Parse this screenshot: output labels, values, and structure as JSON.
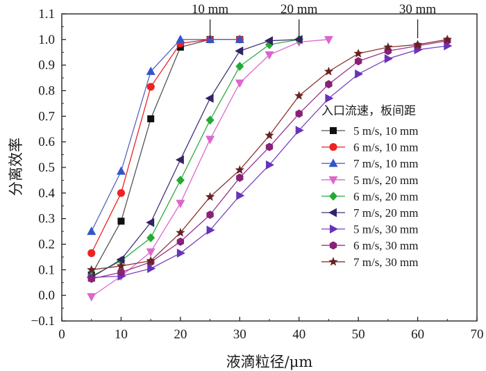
{
  "chart_data": {
    "type": "line",
    "title": "",
    "xlabel": "液滴粒径/μm",
    "ylabel": "分离效率",
    "xlim": [
      0,
      70
    ],
    "ylim": [
      -0.1,
      1.1
    ],
    "xticks": [
      "0",
      "10",
      "20",
      "30",
      "40",
      "50",
      "60",
      "70"
    ],
    "yticks": [
      "−0.1",
      "0.0",
      "0.1",
      "0.2",
      "0.3",
      "0.4",
      "0.5",
      "0.6",
      "0.7",
      "0.8",
      "0.9",
      "1.0",
      "1.1"
    ],
    "legend_title": "入口流速，板间距",
    "legend_position": "right",
    "annotations": [
      {
        "text": "10 mm",
        "x": 25
      },
      {
        "text": "20 mm",
        "x": 40
      },
      {
        "text": "30 mm",
        "x": 60
      }
    ],
    "series": [
      {
        "name": "5 m/s, 10 mm",
        "marker": "square",
        "color": "#111111",
        "line_color": "#555555",
        "x": [
          5,
          10,
          15,
          20,
          25,
          30
        ],
        "y": [
          0.08,
          0.29,
          0.69,
          0.97,
          1.0,
          1.0
        ]
      },
      {
        "name": "6 m/s, 10 mm",
        "marker": "circle",
        "color": "#ee2222",
        "line_color": "#ee2222",
        "x": [
          5,
          10,
          15,
          20,
          25,
          30
        ],
        "y": [
          0.165,
          0.4,
          0.815,
          0.985,
          1.0,
          1.0
        ]
      },
      {
        "name": "7 m/s, 10 mm",
        "marker": "triangle-up",
        "color": "#3355cc",
        "line_color": "#5566bb",
        "x": [
          5,
          10,
          15,
          20,
          25,
          30
        ],
        "y": [
          0.25,
          0.485,
          0.875,
          1.0,
          1.0,
          1.0
        ]
      },
      {
        "name": "5 m/s, 20 mm",
        "marker": "triangle-down",
        "color": "#dd66cc",
        "line_color": "#dd66cc",
        "x": [
          5,
          10,
          15,
          20,
          25,
          30,
          35,
          40,
          45
        ],
        "y": [
          -0.005,
          0.075,
          0.17,
          0.36,
          0.61,
          0.83,
          0.94,
          0.99,
          1.0
        ]
      },
      {
        "name": "6 m/s, 20 mm",
        "marker": "diamond",
        "color": "#22aa33",
        "line_color": "#33aa44",
        "x": [
          5,
          10,
          15,
          20,
          25,
          30,
          35,
          40
        ],
        "y": [
          0.075,
          0.135,
          0.225,
          0.45,
          0.685,
          0.895,
          0.98,
          1.0
        ]
      },
      {
        "name": "7 m/s, 20 mm",
        "marker": "triangle-left",
        "color": "#332266",
        "line_color": "#443377",
        "x": [
          5,
          10,
          15,
          20,
          25,
          30,
          35,
          40
        ],
        "y": [
          0.07,
          0.14,
          0.285,
          0.53,
          0.77,
          0.955,
          0.995,
          1.0
        ]
      },
      {
        "name": "5 m/s, 30 mm",
        "marker": "triangle-right",
        "color": "#6633bb",
        "line_color": "#7744bb",
        "x": [
          5,
          10,
          15,
          20,
          25,
          30,
          35,
          40,
          45,
          50,
          55,
          60,
          65
        ],
        "y": [
          0.07,
          0.075,
          0.105,
          0.165,
          0.255,
          0.39,
          0.51,
          0.645,
          0.77,
          0.865,
          0.925,
          0.96,
          0.975
        ]
      },
      {
        "name": "6 m/s, 30 mm",
        "marker": "hexagon",
        "color": "#882277",
        "line_color": "#993388",
        "x": [
          5,
          10,
          15,
          20,
          25,
          30,
          35,
          40,
          45,
          50,
          55,
          60,
          65
        ],
        "y": [
          0.065,
          0.09,
          0.13,
          0.21,
          0.315,
          0.46,
          0.58,
          0.71,
          0.825,
          0.915,
          0.955,
          0.975,
          0.995
        ]
      },
      {
        "name": "7 m/s, 30 mm",
        "marker": "star",
        "color": "#662222",
        "line_color": "#883333",
        "x": [
          5,
          10,
          15,
          20,
          25,
          30,
          35,
          40,
          45,
          50,
          55,
          60,
          65
        ],
        "y": [
          0.1,
          0.115,
          0.135,
          0.245,
          0.385,
          0.49,
          0.625,
          0.78,
          0.875,
          0.945,
          0.97,
          0.98,
          1.0
        ]
      }
    ]
  }
}
